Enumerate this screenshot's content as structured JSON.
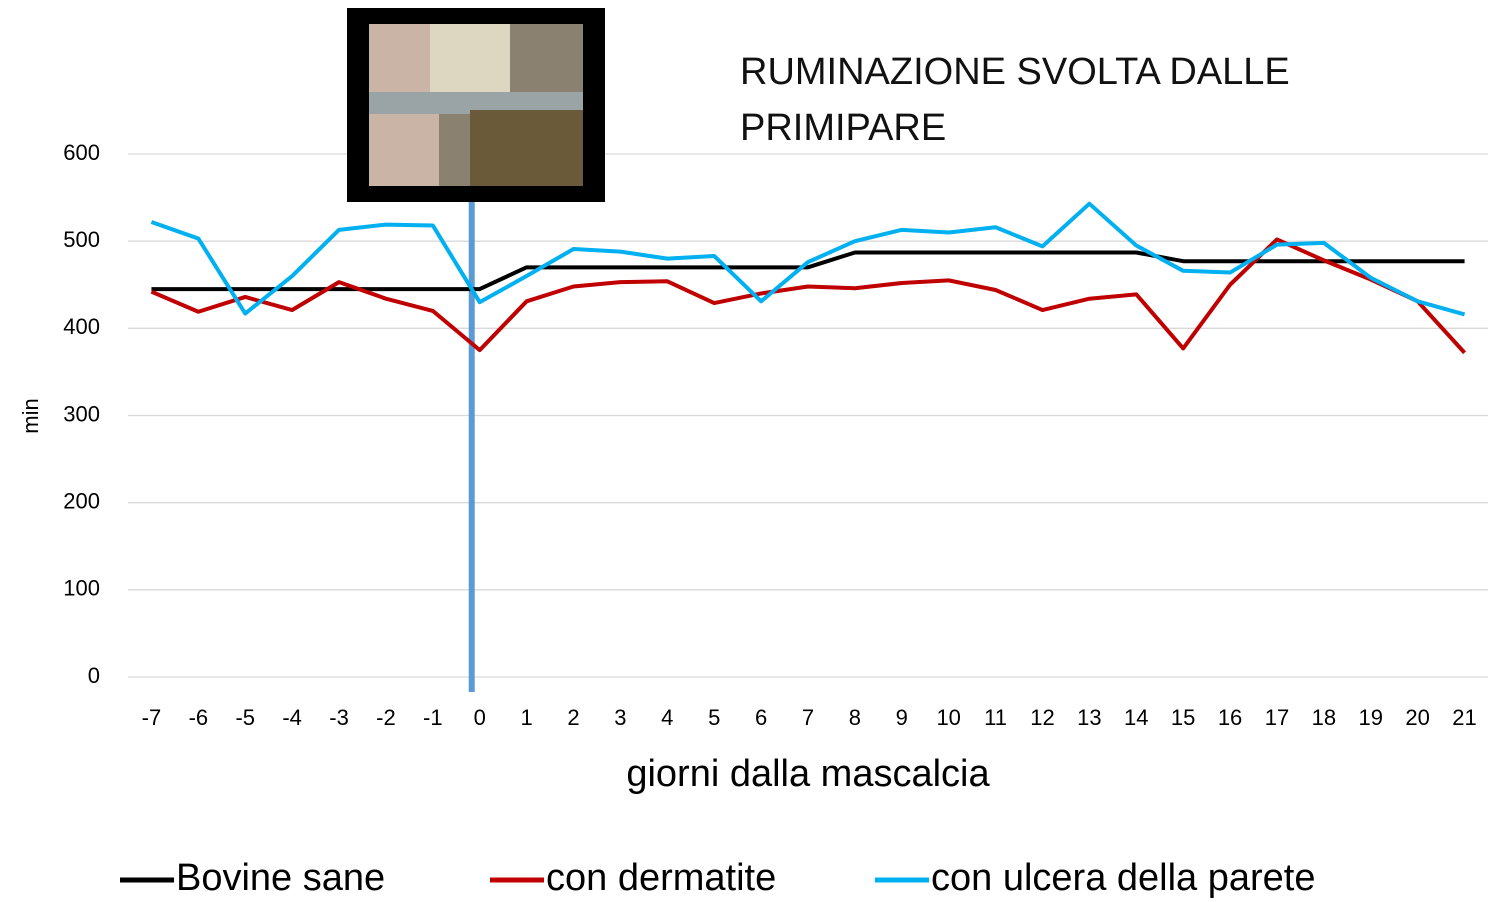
{
  "chart_data": {
    "type": "line",
    "title": "RUMINAZIONE SVOLTA DALLE PRIMIPARE",
    "x_label": "giorni dalla mascalcia",
    "y_label": "min",
    "categories": [
      "-7",
      "-6",
      "-5",
      "-4",
      "-3",
      "-2",
      "-1",
      "0",
      "1",
      "2",
      "3",
      "4",
      "5",
      "6",
      "7",
      "8",
      "9",
      "10",
      "11",
      "12",
      "13",
      "14",
      "15",
      "16",
      "17",
      "18",
      "19",
      "20",
      "21"
    ],
    "series": [
      {
        "name": "Bovine sane",
        "color": "#000000",
        "values": [
          445,
          445,
          445,
          445,
          445,
          445,
          445,
          445,
          470,
          470,
          470,
          470,
          470,
          470,
          470,
          487,
          487,
          487,
          487,
          487,
          487,
          487,
          477,
          477,
          477,
          477,
          477,
          477,
          477
        ]
      },
      {
        "name": "con dermatite",
        "color": "#c00000",
        "values": [
          442,
          419,
          436,
          421,
          453,
          434,
          420,
          375,
          431,
          448,
          453,
          454,
          429,
          440,
          448,
          446,
          452,
          455,
          444,
          421,
          434,
          439,
          377,
          450,
          502,
          478,
          456,
          431,
          372
        ]
      },
      {
        "name": "con ulcera della parete",
        "color": "#00b0f0",
        "values": [
          522,
          503,
          417,
          460,
          513,
          519,
          518,
          430,
          460,
          491,
          488,
          480,
          483,
          431,
          476,
          500,
          513,
          510,
          516,
          494,
          543,
          495,
          466,
          464,
          496,
          498,
          458,
          431,
          416
        ]
      }
    ],
    "ylim": [
      0,
      600
    ],
    "yticks": [
      0,
      100,
      200,
      300,
      400,
      500,
      600
    ],
    "grid": true,
    "marker_category": "0",
    "legend": "bottom"
  }
}
